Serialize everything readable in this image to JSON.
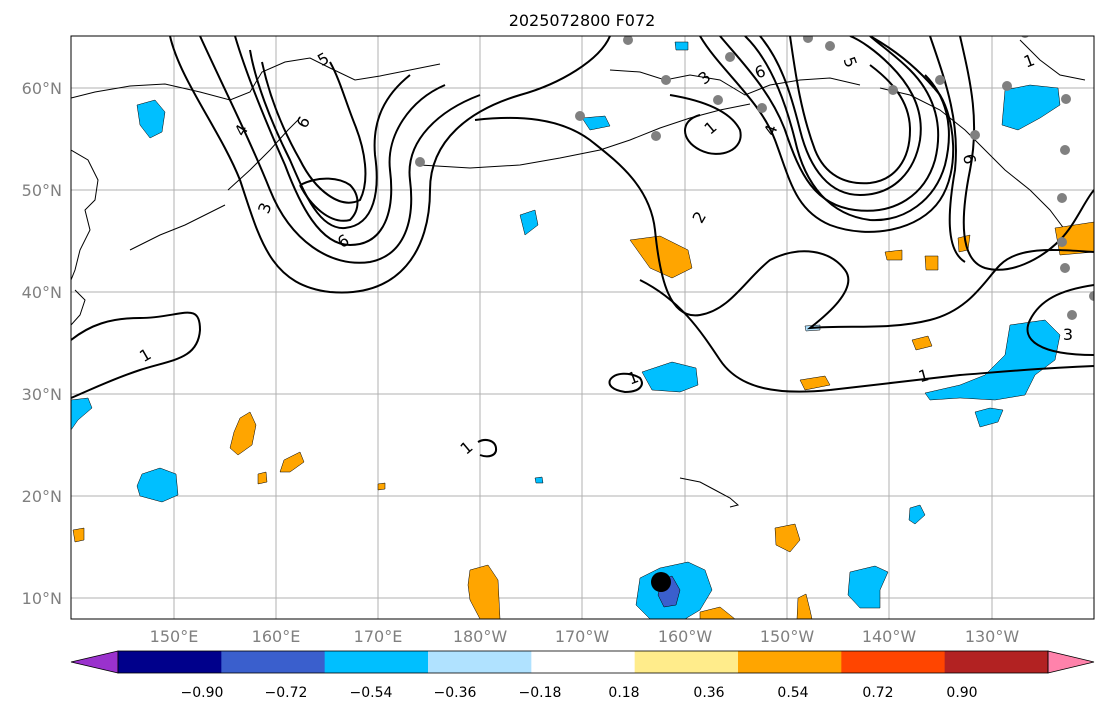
{
  "title": "2025072800 F072",
  "lat_labels": [
    "60°N",
    "50°N",
    "40°N",
    "30°N",
    "20°N",
    "10°N"
  ],
  "lon_labels": [
    "150°E",
    "160°E",
    "170°E",
    "180°W",
    "170°W",
    "160°W",
    "150°W",
    "140°W",
    "130°W"
  ],
  "colorbar": {
    "ticks": [
      "−0.90",
      "−0.72",
      "−0.54",
      "−0.36",
      "−0.18",
      "0.18",
      "0.36",
      "0.54",
      "0.72",
      "0.90"
    ],
    "colors": [
      "#9a32cd",
      "#00008b",
      "#3a5fcd",
      "#00bfff",
      "#b0e2ff",
      "#ffffff",
      "#ffec8b",
      "#ffa500",
      "#ff4500",
      "#b22222",
      "#ff82ab"
    ]
  },
  "contour_labels": [
    "1",
    "1",
    "1",
    "1",
    "1",
    "1",
    "2",
    "3",
    "3",
    "3",
    "4",
    "4",
    "5",
    "5",
    "6",
    "6",
    "6",
    "6"
  ],
  "colors": {
    "grid": "#b0b0b0",
    "station": "#808080",
    "marker": "#000000"
  }
}
